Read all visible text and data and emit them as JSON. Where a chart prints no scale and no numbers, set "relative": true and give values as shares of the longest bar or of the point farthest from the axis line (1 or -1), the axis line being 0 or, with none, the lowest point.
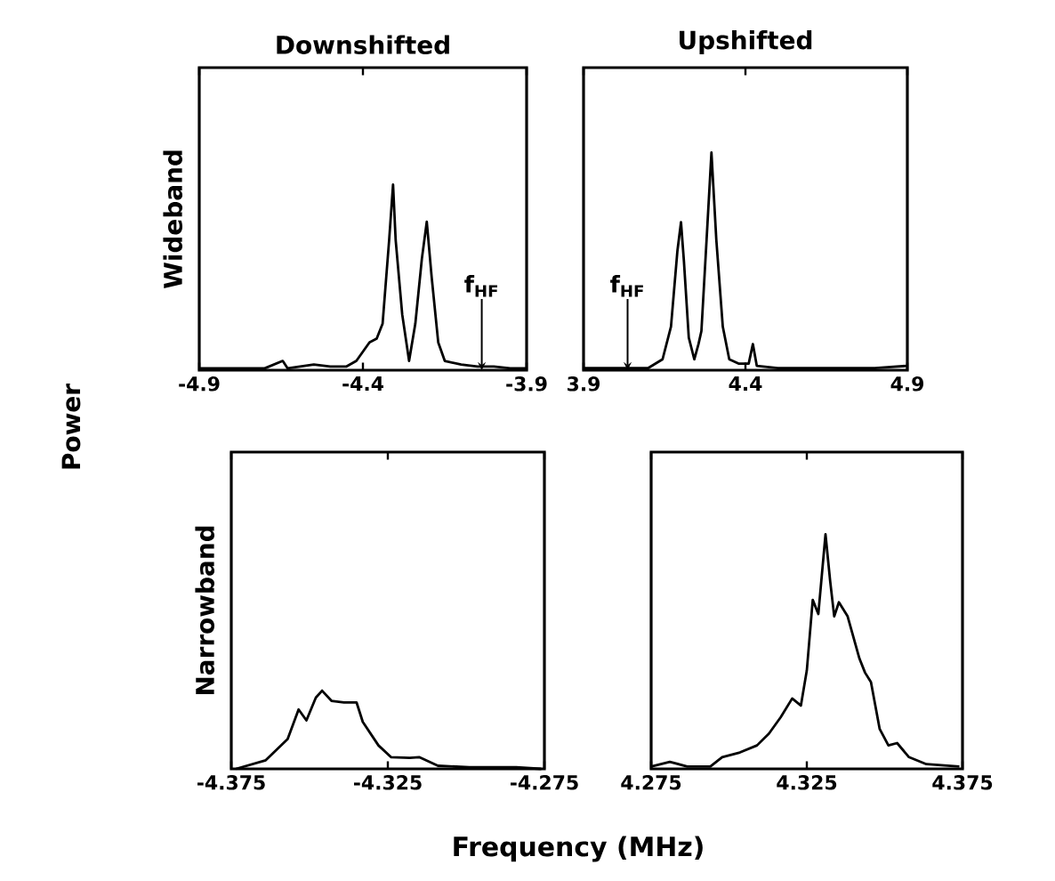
{
  "chart_data": [
    {
      "type": "line",
      "title": "Downshifted",
      "ylabel": "Wideband",
      "relative": true,
      "xlim": [
        -4.9,
        -3.9
      ],
      "xticks": [
        -4.9,
        -4.4,
        -3.9
      ],
      "annotations": [
        "Power",
        {
          "text": "f$_{HF}$",
          "x": -4.037,
          "y": 0
        }
      ],
      "series": [
        {
          "color": "#000000",
          "x": [
            -4.9,
            -4.7,
            -4.645,
            -4.63,
            -4.55,
            -4.5,
            -4.45,
            -4.42,
            -4.38,
            -4.358,
            -4.34,
            -4.32,
            -4.308,
            -4.3,
            -4.28,
            -4.259,
            -4.24,
            -4.22,
            -4.205,
            -4.19,
            -4.17,
            -4.15,
            -4.1,
            -4.05,
            -4.0,
            -3.95,
            -3.9
          ],
          "values": [
            0.01,
            0.01,
            0.05,
            0.01,
            0.03,
            0.02,
            0.02,
            0.05,
            0.15,
            0.17,
            0.25,
            0.7,
            1.0,
            0.7,
            0.3,
            0.05,
            0.25,
            0.6,
            0.8,
            0.5,
            0.15,
            0.05,
            0.03,
            0.02,
            0.02,
            0.01,
            0.01
          ]
        }
      ]
    },
    {
      "type": "line",
      "title": "Upshifted",
      "relative": true,
      "xlim": [
        3.9,
        4.9
      ],
      "xticks": [
        3.9,
        4.4,
        4.9
      ],
      "annotations": [
        {
          "text": "f$_{HF}$",
          "x": 4.036,
          "y": 0
        }
      ],
      "series": [
        {
          "color": "#000000",
          "x": [
            3.9,
            4.0,
            4.1,
            4.144,
            4.17,
            4.19,
            4.201,
            4.21,
            4.225,
            4.242,
            4.255,
            4.264,
            4.28,
            4.295,
            4.31,
            4.33,
            4.35,
            4.38,
            4.41,
            4.423,
            4.435,
            4.5,
            4.6,
            4.7,
            4.8,
            4.9
          ],
          "values": [
            0.01,
            0.01,
            0.01,
            0.05,
            0.2,
            0.55,
            0.68,
            0.5,
            0.15,
            0.05,
            0.12,
            0.18,
            0.6,
            1.0,
            0.6,
            0.2,
            0.05,
            0.03,
            0.03,
            0.12,
            0.02,
            0.01,
            0.01,
            0.01,
            0.01,
            0.02
          ]
        }
      ]
    },
    {
      "type": "line",
      "ylabel": "Narrowband",
      "xlabel": "Frequency (MHz)",
      "relative": true,
      "xlim": [
        -4.375,
        -4.275
      ],
      "xticks": [
        -4.375,
        -4.325,
        -4.275
      ],
      "series": [
        {
          "color": "#000000",
          "x": [
            -4.3735,
            -4.364,
            -4.357,
            -4.3535,
            -4.351,
            -4.348,
            -4.346,
            -4.343,
            -4.339,
            -4.335,
            -4.333,
            -4.328,
            -4.324,
            -4.318,
            -4.315,
            -4.309,
            -4.299,
            -4.284,
            -4.276
          ],
          "values": [
            0.0,
            0.11,
            0.38,
            0.76,
            0.62,
            0.91,
            1.0,
            0.87,
            0.85,
            0.85,
            0.6,
            0.3,
            0.15,
            0.14,
            0.15,
            0.04,
            0.02,
            0.02,
            0.0
          ]
        }
      ]
    },
    {
      "type": "line",
      "relative": true,
      "xlim": [
        4.275,
        4.375
      ],
      "xticks": [
        4.275,
        4.325,
        4.375
      ],
      "series": [
        {
          "color": "#000000",
          "x": [
            4.275,
            4.281,
            4.2866,
            4.294,
            4.2978,
            4.3035,
            4.309,
            4.3128,
            4.3166,
            4.3203,
            4.3231,
            4.325,
            4.3269,
            4.3287,
            4.331,
            4.3325,
            4.3338,
            4.3353,
            4.3381,
            4.3419,
            4.3437,
            4.3456,
            4.3484,
            4.3512,
            4.354,
            4.3578,
            4.3634,
            4.374
          ],
          "values": [
            0.01,
            0.03,
            0.01,
            0.01,
            0.05,
            0.07,
            0.1,
            0.15,
            0.22,
            0.3,
            0.27,
            0.42,
            0.72,
            0.66,
            1.0,
            0.8,
            0.65,
            0.71,
            0.65,
            0.47,
            0.41,
            0.37,
            0.17,
            0.1,
            0.11,
            0.05,
            0.02,
            0.01
          ]
        }
      ]
    }
  ]
}
